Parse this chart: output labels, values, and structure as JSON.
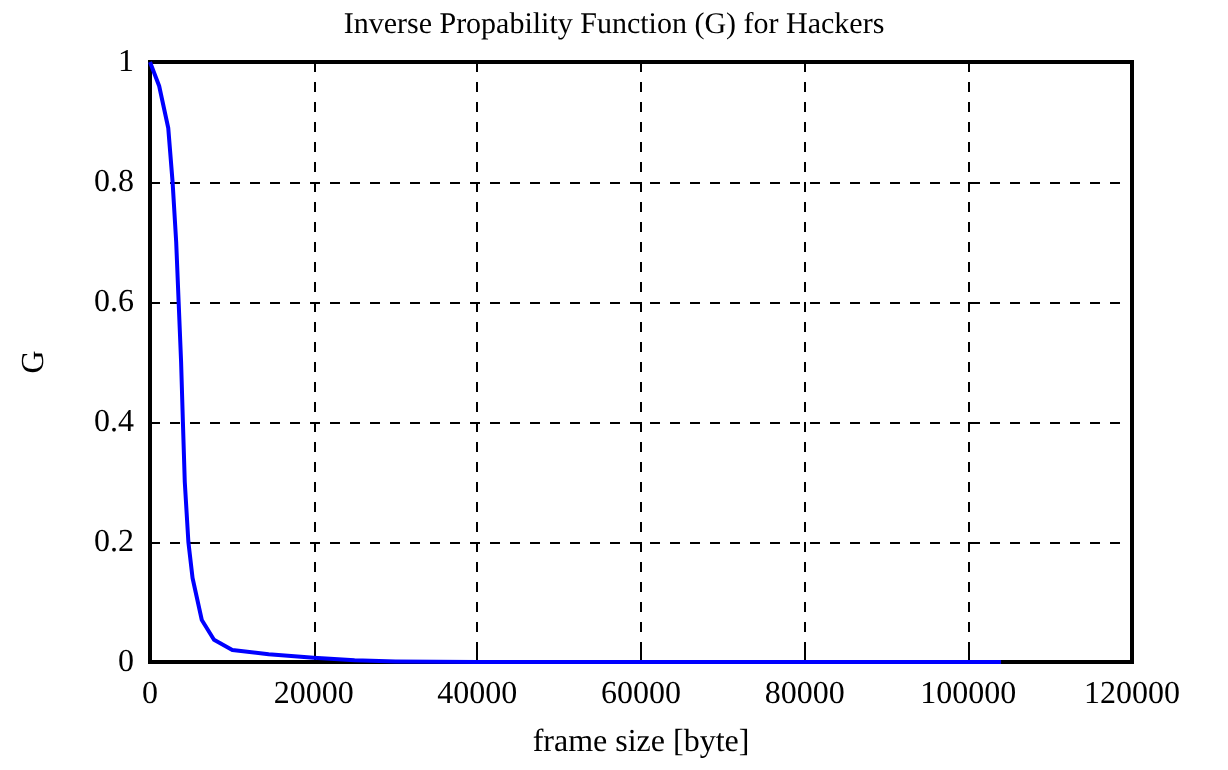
{
  "chart_data": {
    "type": "line",
    "title": "Inverse Propability Function (G) for Hackers",
    "xlabel": "frame size [byte]",
    "ylabel": "G",
    "series": [
      {
        "color": "#0000ff",
        "x": [
          0,
          1120,
          2230,
          2760,
          3200,
          3500,
          3800,
          4020,
          4250,
          4690,
          5200,
          6330,
          7820,
          10060,
          14500,
          20000,
          25000,
          30000,
          40000,
          60000,
          80000,
          104000
        ],
        "values": [
          1.0,
          0.96,
          0.89,
          0.8,
          0.7,
          0.6,
          0.5,
          0.4,
          0.3,
          0.2,
          0.14,
          0.07,
          0.037,
          0.02,
          0.013,
          0.007,
          0.003,
          0.001,
          0,
          0,
          0,
          0
        ]
      }
    ],
    "xlim": [
      0,
      120000
    ],
    "xticks": [
      0,
      20000,
      40000,
      60000,
      80000,
      100000,
      120000
    ],
    "ylim": [
      0,
      1
    ],
    "yticks": [
      0,
      0.2,
      0.4,
      0.6,
      0.8,
      1
    ],
    "grid": true,
    "marker": "none",
    "line_style": "solid"
  }
}
